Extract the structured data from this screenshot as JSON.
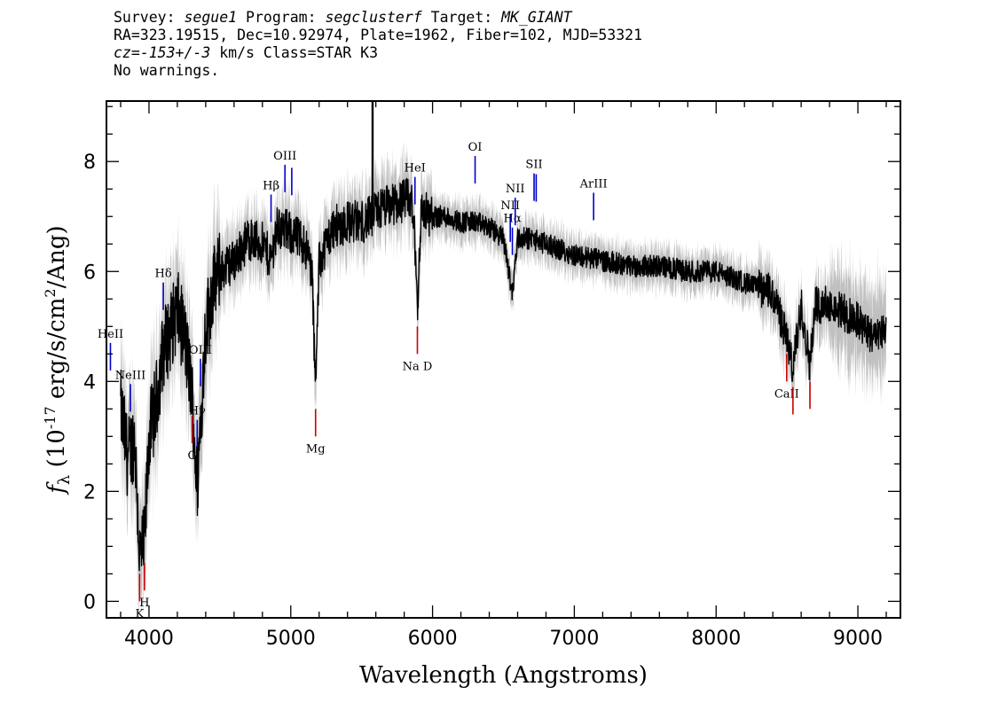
{
  "header": {
    "line1": {
      "survey_label": "Survey: ",
      "survey": "segue1",
      "program_label": " Program: ",
      "program": "segclusterf",
      "target_label": " Target: ",
      "target": "MK_GIANT"
    },
    "line2": "RA=323.19515, Dec=10.92974, Plate=1962, Fiber=102, MJD=53321",
    "line3": {
      "cz_label": "cz=",
      "cz": "-153+/-3",
      "rest": " km/s Class=STAR K3"
    },
    "line4": "No warnings."
  },
  "chart_data": {
    "type": "line",
    "xlabel": "Wavelength (Angstroms)",
    "ylabel": "f_λ (10^-17 erg/s/cm^2/Ang)",
    "xlim": [
      3700,
      9300
    ],
    "ylim": [
      -0.3,
      9.1
    ],
    "x_ticks": [
      4000,
      5000,
      6000,
      7000,
      8000,
      9000
    ],
    "y_ticks": [
      0,
      2,
      4,
      6,
      8
    ],
    "colors": {
      "flux": "#000000",
      "error_band": "#c0c0c0",
      "emission": "#0000cc",
      "absorption": "#cc0000"
    },
    "series": [
      {
        "x": [
          3800,
          3850,
          3900,
          3934,
          3968,
          4000,
          4050,
          4101,
          4150,
          4200,
          4250,
          4300,
          4340,
          4400,
          4450,
          4500,
          4600,
          4700,
          4800,
          4861,
          4900,
          5000,
          5100,
          5150,
          5175,
          5200,
          5300,
          5400,
          5500,
          5577,
          5600,
          5700,
          5800,
          5850,
          5880,
          5893,
          5920,
          6000,
          6100,
          6200,
          6300,
          6400,
          6500,
          6563,
          6600,
          6700,
          6800,
          6900,
          7000,
          7200,
          7400,
          7600,
          7800,
          8000,
          8200,
          8400,
          8498,
          8542,
          8600,
          8662,
          8700,
          8800,
          9000,
          9100,
          9200
        ],
        "y": [
          3.5,
          2.6,
          3.0,
          0.8,
          1.0,
          3.0,
          3.6,
          4.6,
          4.9,
          5.3,
          4.8,
          3.9,
          2.1,
          5.0,
          5.7,
          6.0,
          6.2,
          6.6,
          6.5,
          6.2,
          6.8,
          6.7,
          6.5,
          6.0,
          3.8,
          6.2,
          6.8,
          6.9,
          6.9,
          7.0,
          7.1,
          7.2,
          7.3,
          7.3,
          6.4,
          5.3,
          7.1,
          7.0,
          7.0,
          6.9,
          6.9,
          6.8,
          6.6,
          5.6,
          6.6,
          6.6,
          6.5,
          6.4,
          6.3,
          6.2,
          6.1,
          6.1,
          6.0,
          6.0,
          5.8,
          5.6,
          4.8,
          4.2,
          5.4,
          4.3,
          5.4,
          5.4,
          5.1,
          4.8,
          5.0
        ]
      }
    ],
    "emission_lines": [
      {
        "label": "HeII",
        "x": 3728
      },
      {
        "label": "NeIII",
        "x": 3869
      },
      {
        "label": "Hδ",
        "x": 4101
      },
      {
        "label": "Hγ",
        "x": 4340
      },
      {
        "label": "OIII",
        "x": 4363
      },
      {
        "label": "Hβ",
        "x": 4861
      },
      {
        "label": "OIII",
        "x": 4959
      },
      {
        "label": "",
        "x": 5007
      },
      {
        "label": "HeI",
        "x": 5876
      },
      {
        "label": "OI",
        "x": 6300
      },
      {
        "label": "NII",
        "x": 6548
      },
      {
        "label": "Hα",
        "x": 6563
      },
      {
        "label": "NII",
        "x": 6583
      },
      {
        "label": "SII",
        "x": 6716
      },
      {
        "label": "",
        "x": 6731
      },
      {
        "label": "ArIII",
        "x": 7136
      }
    ],
    "absorption_lines": [
      {
        "label": "K",
        "x": 3934
      },
      {
        "label": "H",
        "x": 3968
      },
      {
        "label": "G",
        "x": 4305
      },
      {
        "label": "Mg",
        "x": 5175
      },
      {
        "label": "Na D",
        "x": 5893
      },
      {
        "label": "CaII",
        "x": 8498
      },
      {
        "label": "",
        "x": 8542
      },
      {
        "label": "",
        "x": 8662
      }
    ]
  }
}
